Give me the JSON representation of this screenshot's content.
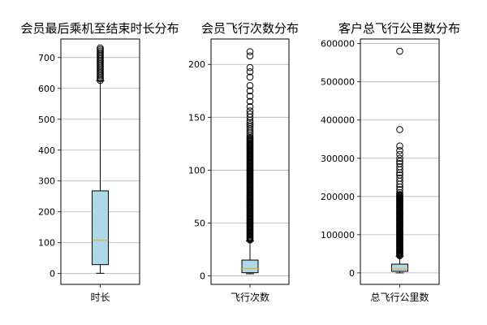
{
  "chart_data": [
    {
      "type": "box",
      "title": "会员最后乘机至结束时长分布",
      "categories": [
        "时长"
      ],
      "ylim": [
        -35,
        760
      ],
      "yticks": [
        0,
        100,
        200,
        300,
        400,
        500,
        600,
        700
      ],
      "grid": "y",
      "box": {
        "whisker_low": 1,
        "q1": 29,
        "median": 108,
        "q3": 268,
        "whisker_high": 625
      },
      "outliers": {
        "from": 626,
        "to": 731,
        "step": 5
      },
      "colors": {
        "box_fill": "#add8e6",
        "median": "#f0a830"
      }
    },
    {
      "type": "box",
      "title": "会员飞行次数分布",
      "categories": [
        "飞行次数"
      ],
      "ylim": [
        -8,
        224
      ],
      "yticks": [
        0,
        50,
        100,
        150,
        200
      ],
      "grid": "y",
      "box": {
        "whisker_low": 2,
        "q1": 3,
        "median": 7,
        "q3": 15,
        "whisker_high": 33
      },
      "outliers_dense": {
        "from": 34,
        "to": 130,
        "step": 1
      },
      "outliers": [
        131,
        133,
        135,
        137,
        139,
        141,
        143,
        145,
        147,
        150,
        153,
        156,
        160,
        165,
        170,
        175,
        180,
        188,
        193,
        197,
        208,
        212
      ],
      "colors": {
        "box_fill": "#add8e6",
        "median": "#f0a830"
      }
    },
    {
      "type": "box",
      "title": "客户总飞行公里数分布",
      "categories": [
        "总飞行公里数"
      ],
      "ylim": [
        -30000,
        612000
      ],
      "yticks": [
        0,
        100000,
        200000,
        300000,
        400000,
        500000,
        600000
      ],
      "grid": "y",
      "box": {
        "whisker_low": 0,
        "q1": 4000,
        "median": 10000,
        "q3": 23000,
        "whisker_high": 43000
      },
      "outliers_dense": {
        "from": 45000,
        "to": 205000,
        "step": 2000
      },
      "outliers": [
        210000,
        218000,
        225000,
        232000,
        240000,
        248000,
        256000,
        262000,
        270000,
        278000,
        286000,
        292000,
        300000,
        310000,
        320000,
        332000,
        375000,
        580000
      ],
      "colors": {
        "box_fill": "#add8e6",
        "median": "#f0a830"
      }
    }
  ]
}
